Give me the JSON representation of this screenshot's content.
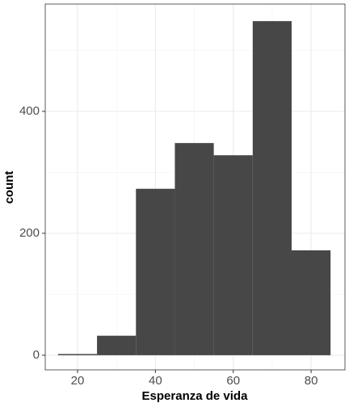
{
  "chart_data": {
    "type": "histogram",
    "x_label": "Esperanza de vida",
    "y_label": "count",
    "bins": [
      15,
      25,
      35,
      45,
      55,
      65,
      75,
      85
    ],
    "values": [
      2,
      32,
      273,
      348,
      328,
      548,
      172
    ],
    "color": "#474747",
    "xlim": [
      11.7,
      88.7
    ],
    "ylim": [
      -24,
      576
    ],
    "xticks": [
      20,
      40,
      60,
      80
    ],
    "yticks": [
      0,
      200,
      400
    ],
    "x_minor_grid": [
      30,
      50,
      70
    ],
    "y_minor_grid": [
      100,
      300,
      500
    ],
    "grid": true
  }
}
